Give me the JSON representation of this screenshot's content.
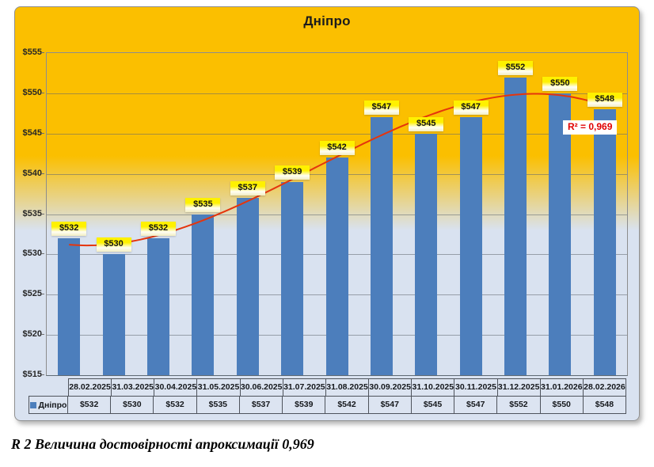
{
  "chart_data": {
    "type": "bar",
    "title": "Дніпро",
    "categories": [
      "28.02.2025",
      "31.03.2025",
      "30.04.2025",
      "31.05.2025",
      "30.06.2025",
      "31.07.2025",
      "31.08.2025",
      "30.09.2025",
      "31.10.2025",
      "30.11.2025",
      "31.12.2025",
      "31.01.2026",
      "28.02.2026"
    ],
    "series": [
      {
        "name": "Дніпро",
        "values": [
          532,
          530,
          532,
          535,
          537,
          539,
          542,
          547,
          545,
          547,
          552,
          550,
          548
        ]
      }
    ],
    "data_labels": [
      "$532",
      "$530",
      "$532",
      "$535",
      "$537",
      "$539",
      "$542",
      "$547",
      "$545",
      "$547",
      "$552",
      "$550",
      "$548"
    ],
    "xlabel": "",
    "ylabel": "",
    "ylim": [
      515,
      555
    ],
    "ytick_step": 5,
    "tick_prefix": "$",
    "grid": true,
    "legend_position": "data-table-left",
    "data_table": true,
    "colors": {
      "bar": "#4C7EBC",
      "label_bg": "#FFF100",
      "background_top": "#FBBF00",
      "background_bottom": "#D9E2F0",
      "table_bg": "#DCE4F1"
    },
    "trendline": {
      "type": "polynomial",
      "degree": 3,
      "color": "#E5350C",
      "annotation": "R² = 0,969"
    }
  },
  "caption": "R 2 Величина достовірності апроксимації 0,969"
}
